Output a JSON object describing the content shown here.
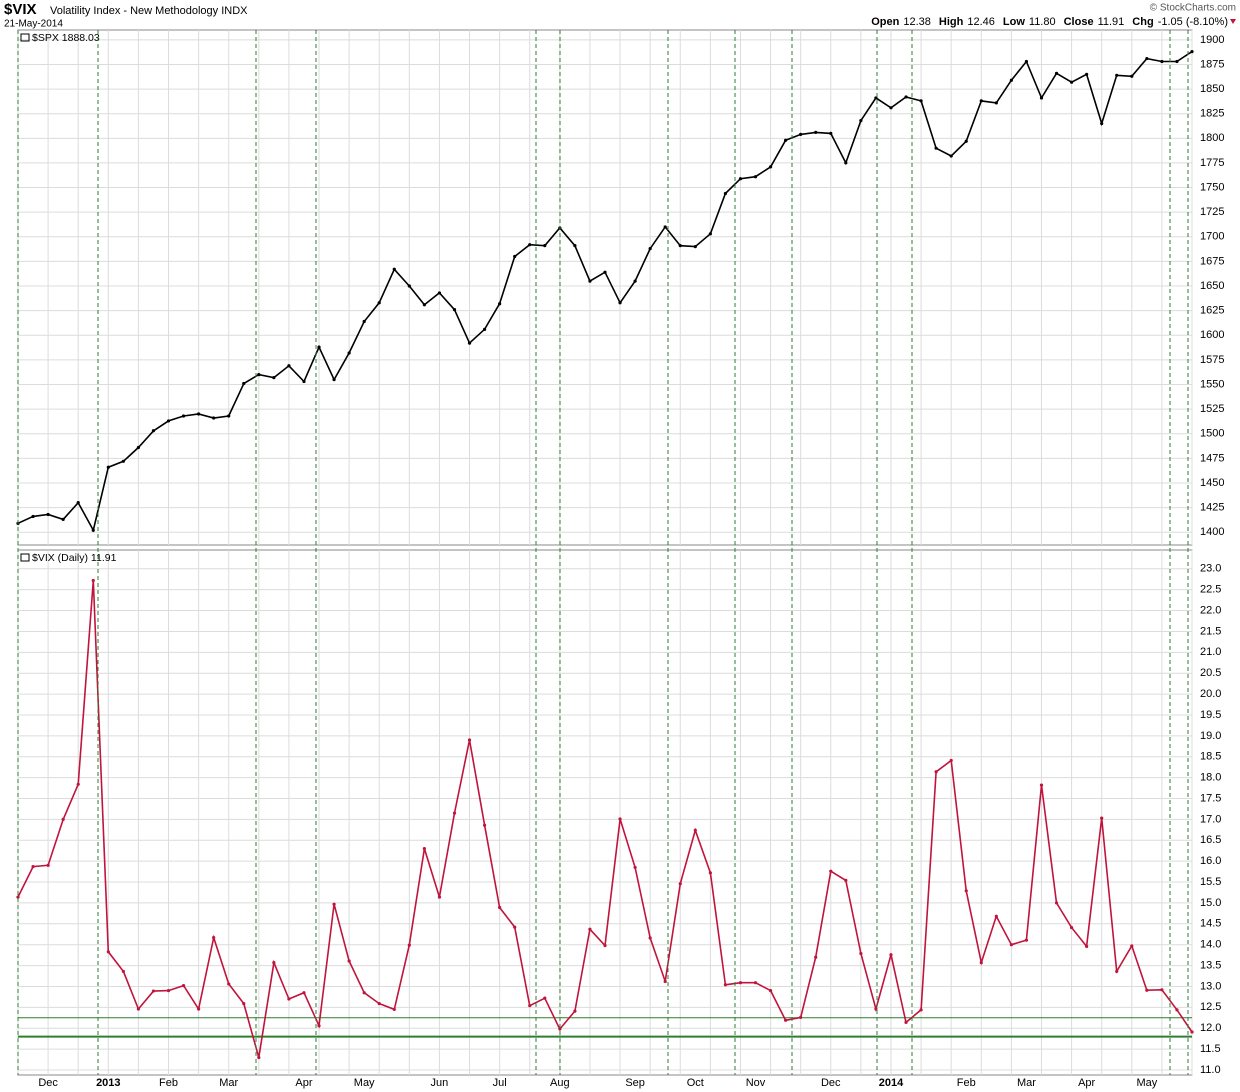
{
  "header": {
    "symbol": "$VIX",
    "name": "Volatility Index - New Methodology INDX",
    "date": "21-May-2014",
    "quote": [
      {
        "label": "Open",
        "value": "12.38"
      },
      {
        "label": "High",
        "value": "12.46"
      },
      {
        "label": "Low",
        "value": "11.80"
      },
      {
        "label": "Close",
        "value": "11.91"
      },
      {
        "label": "Chg",
        "value": "-1.05 (-8.10%)"
      }
    ],
    "watermark": "© StockCharts.com"
  },
  "chart_data": [
    {
      "type": "line",
      "title": "$SPX 1888.03",
      "color": "#000000",
      "grid": true,
      "ylim": [
        1387,
        1910
      ],
      "yticks": [
        1400,
        1425,
        1450,
        1475,
        1500,
        1525,
        1550,
        1575,
        1600,
        1625,
        1650,
        1675,
        1700,
        1725,
        1750,
        1775,
        1800,
        1825,
        1850,
        1875,
        1900
      ],
      "values": [
        1409,
        1416,
        1418,
        1413,
        1430,
        1402,
        1466,
        1472,
        1486,
        1503,
        1513,
        1518,
        1520,
        1516,
        1518,
        1551,
        1560,
        1557,
        1569,
        1553,
        1588,
        1555,
        1582,
        1614,
        1633,
        1667,
        1650,
        1631,
        1643,
        1626,
        1592,
        1606,
        1632,
        1680,
        1692,
        1691,
        1709,
        1691,
        1655,
        1664,
        1633,
        1655,
        1688,
        1710,
        1691,
        1690,
        1703,
        1744,
        1759,
        1761,
        1771,
        1798,
        1804,
        1806,
        1805,
        1775,
        1818,
        1841,
        1831,
        1842,
        1838,
        1790,
        1782,
        1797,
        1838,
        1836,
        1859,
        1878,
        1841,
        1866,
        1857,
        1865,
        1815,
        1864,
        1863,
        1881,
        1878,
        1878,
        1888.03
      ]
    },
    {
      "type": "line",
      "title": "$VIX (Daily) 11.91",
      "color": "#c0143c",
      "grid": true,
      "hlines": [
        12.25,
        11.8
      ],
      "hline_color": "#2e7d32",
      "ylim": [
        10.88,
        23.45
      ],
      "yticks": [
        {
          "value": 11,
          "label": "11.0"
        },
        11.5,
        {
          "value": 12,
          "label": "12.0"
        },
        12.5,
        {
          "value": 13,
          "label": "13.0"
        },
        13.5,
        {
          "value": 14,
          "label": "14.0"
        },
        14.5,
        {
          "value": 15,
          "label": "15.0"
        },
        15.5,
        {
          "value": 16,
          "label": "16.0"
        },
        16.5,
        {
          "value": 17,
          "label": "17.0"
        },
        17.5,
        {
          "value": 18,
          "label": "18.0"
        },
        18.5,
        {
          "value": 19,
          "label": "19.0"
        },
        19.5,
        {
          "value": 20,
          "label": "20.0"
        },
        20.5,
        {
          "value": 21,
          "label": "21.0"
        },
        21.5,
        {
          "value": 22,
          "label": "22.0"
        },
        22.5,
        {
          "value": 23,
          "label": "23.0"
        }
      ],
      "categories": [
        null,
        null,
        "Dec",
        null,
        null,
        null,
        "2013",
        null,
        null,
        null,
        "Feb",
        null,
        null,
        null,
        "Mar",
        null,
        null,
        null,
        null,
        "Apr",
        null,
        null,
        null,
        "May",
        null,
        null,
        null,
        null,
        "Jun",
        null,
        null,
        null,
        "Jul",
        null,
        null,
        null,
        "Aug",
        null,
        null,
        null,
        null,
        "Sep",
        null,
        null,
        null,
        "Oct",
        null,
        null,
        null,
        "Nov",
        null,
        null,
        null,
        null,
        "Dec",
        null,
        null,
        null,
        "2014",
        null,
        null,
        null,
        null,
        "Feb",
        null,
        null,
        null,
        "Mar",
        null,
        null,
        null,
        "Apr",
        null,
        null,
        null,
        "May",
        null,
        null,
        null
      ],
      "values": [
        15.14,
        15.87,
        15.9,
        17.0,
        17.84,
        22.72,
        13.83,
        13.36,
        12.46,
        12.89,
        12.9,
        13.02,
        12.46,
        14.17,
        13.06,
        12.59,
        11.3,
        13.57,
        12.7,
        12.85,
        12.06,
        14.97,
        13.61,
        12.85,
        12.59,
        12.45,
        13.99,
        16.3,
        15.14,
        17.15,
        18.9,
        16.86,
        14.89,
        14.42,
        12.54,
        12.72,
        11.98,
        12.41,
        14.37,
        13.98,
        17.01,
        15.85,
        14.16,
        13.12,
        15.46,
        16.74,
        15.72,
        13.04,
        13.09,
        13.09,
        12.9,
        12.19,
        12.26,
        13.7,
        15.76,
        15.54,
        13.79,
        12.46,
        13.76,
        12.14,
        12.44,
        18.14,
        18.41,
        15.29,
        13.57,
        14.68,
        14.0,
        14.11,
        17.82,
        15.0,
        14.41,
        13.96,
        17.03,
        13.36,
        13.97,
        12.91,
        12.92,
        12.44,
        11.91
      ]
    }
  ]
}
